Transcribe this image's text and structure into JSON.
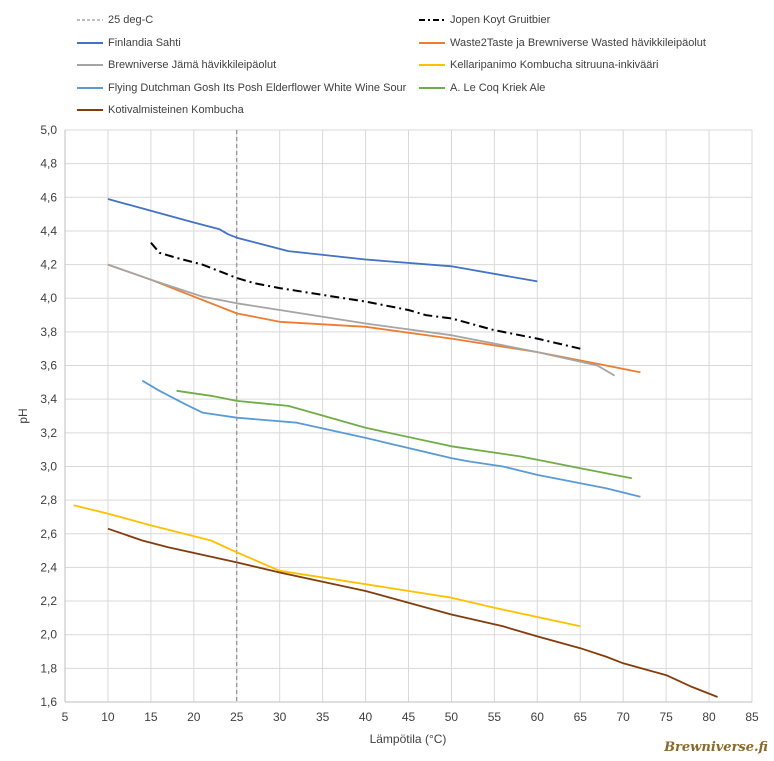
{
  "chart_data": {
    "type": "line",
    "xlabel": "Lämpötila (°C)",
    "ylabel": "pH",
    "xlim": [
      5,
      85
    ],
    "ylim": [
      1.6,
      5.0
    ],
    "xticks": [
      "5",
      "10",
      "15",
      "20",
      "25",
      "30",
      "35",
      "40",
      "45",
      "50",
      "55",
      "60",
      "65",
      "70",
      "75",
      "80",
      "85"
    ],
    "yticks": [
      "1,6",
      "1,8",
      "2,0",
      "2,2",
      "2,4",
      "2,6",
      "2,8",
      "3,0",
      "3,2",
      "3,4",
      "3,6",
      "3,8",
      "4,0",
      "4,2",
      "4,4",
      "4,6",
      "4,8",
      "5,0"
    ],
    "grid": true,
    "legend_placement": "top",
    "reference_line": {
      "name": "25 deg-C",
      "x": 25,
      "color": "#7f7f7f",
      "style": "dashed"
    },
    "series": [
      {
        "name": "Jopen Koyt Gruitbier",
        "color": "#000000",
        "style": "dashdot",
        "points": [
          [
            15,
            4.33
          ],
          [
            16,
            4.27
          ],
          [
            18,
            4.24
          ],
          [
            21,
            4.2
          ],
          [
            25,
            4.12
          ],
          [
            27,
            4.09
          ],
          [
            30,
            4.06
          ],
          [
            35,
            4.02
          ],
          [
            40,
            3.98
          ],
          [
            45,
            3.93
          ],
          [
            47,
            3.9
          ],
          [
            50,
            3.88
          ],
          [
            55,
            3.81
          ],
          [
            60,
            3.76
          ],
          [
            65,
            3.7
          ]
        ]
      },
      {
        "name": "Finlandia Sahti",
        "color": "#4472c4",
        "style": "solid",
        "points": [
          [
            10,
            4.59
          ],
          [
            15,
            4.52
          ],
          [
            20,
            4.45
          ],
          [
            23,
            4.41
          ],
          [
            24,
            4.38
          ],
          [
            25,
            4.36
          ],
          [
            31,
            4.28
          ],
          [
            40,
            4.23
          ],
          [
            50,
            4.19
          ],
          [
            60,
            4.1
          ]
        ]
      },
      {
        "name": "Waste2Taste ja Brewniverse Wasted hävikkileipäolut",
        "color": "#ed7d31",
        "style": "solid",
        "points": [
          [
            10,
            4.2
          ],
          [
            15,
            4.11
          ],
          [
            20,
            4.01
          ],
          [
            25,
            3.91
          ],
          [
            30,
            3.86
          ],
          [
            40,
            3.83
          ],
          [
            50,
            3.76
          ],
          [
            60,
            3.68
          ],
          [
            67,
            3.61
          ],
          [
            72,
            3.56
          ]
        ]
      },
      {
        "name": "Brewniverse Jämä hävikkileipäolut",
        "color": "#a5a5a5",
        "style": "solid",
        "points": [
          [
            10,
            4.2
          ],
          [
            15,
            4.11
          ],
          [
            21,
            4.01
          ],
          [
            25,
            3.97
          ],
          [
            30,
            3.93
          ],
          [
            40,
            3.85
          ],
          [
            50,
            3.78
          ],
          [
            56,
            3.72
          ],
          [
            60,
            3.68
          ],
          [
            67,
            3.6
          ],
          [
            69,
            3.54
          ]
        ]
      },
      {
        "name": "Kellaripanimo Kombucha sitruuna-inkivääri",
        "color": "#ffc000",
        "style": "solid",
        "points": [
          [
            6,
            2.77
          ],
          [
            10,
            2.72
          ],
          [
            15,
            2.65
          ],
          [
            22,
            2.56
          ],
          [
            25,
            2.49
          ],
          [
            30,
            2.38
          ],
          [
            40,
            2.3
          ],
          [
            50,
            2.22
          ],
          [
            55,
            2.16
          ],
          [
            65,
            2.05
          ]
        ]
      },
      {
        "name": "Flying Dutchman Gosh Its Posh Elderflower White Wine Sour",
        "color": "#5b9bd5",
        "style": "solid",
        "points": [
          [
            14,
            3.51
          ],
          [
            16,
            3.45
          ],
          [
            19,
            3.37
          ],
          [
            21,
            3.32
          ],
          [
            25,
            3.29
          ],
          [
            32,
            3.26
          ],
          [
            40,
            3.17
          ],
          [
            50,
            3.05
          ],
          [
            52,
            3.03
          ],
          [
            56,
            3.0
          ],
          [
            60,
            2.95
          ],
          [
            68,
            2.87
          ],
          [
            72,
            2.82
          ]
        ]
      },
      {
        "name": "A. Le Coq Kriek Ale",
        "color": "#70ad47",
        "style": "solid",
        "points": [
          [
            18,
            3.45
          ],
          [
            22,
            3.42
          ],
          [
            25,
            3.39
          ],
          [
            31,
            3.36
          ],
          [
            40,
            3.23
          ],
          [
            50,
            3.12
          ],
          [
            58,
            3.06
          ],
          [
            60,
            3.04
          ],
          [
            65,
            2.99
          ],
          [
            71,
            2.93
          ]
        ]
      },
      {
        "name": "Kotivalmisteinen Kombucha",
        "color": "#843c0c",
        "style": "solid",
        "points": [
          [
            10,
            2.63
          ],
          [
            14,
            2.56
          ],
          [
            17,
            2.52
          ],
          [
            25,
            2.43
          ],
          [
            30,
            2.37
          ],
          [
            40,
            2.26
          ],
          [
            45,
            2.19
          ],
          [
            50,
            2.12
          ],
          [
            56,
            2.05
          ],
          [
            60,
            1.99
          ],
          [
            65,
            1.92
          ],
          [
            68,
            1.87
          ],
          [
            70,
            1.83
          ],
          [
            75,
            1.76
          ],
          [
            78,
            1.69
          ],
          [
            81,
            1.63
          ]
        ]
      }
    ]
  },
  "watermark": "Brewniverse.fi"
}
